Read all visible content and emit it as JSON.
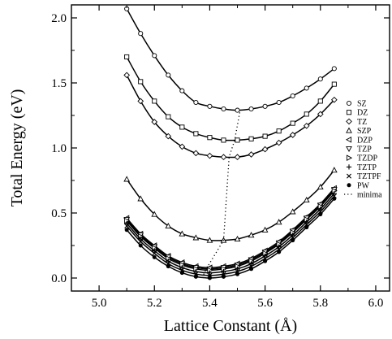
{
  "chart_data": {
    "type": "line",
    "xlabel": "Lattice Constant  (Å)",
    "ylabel": "Total Energy  (eV)",
    "xlim": [
      4.9,
      6.05
    ],
    "ylim": [
      -0.1,
      2.1
    ],
    "xticks": [
      "5.0",
      "5.2",
      "5.4",
      "5.6",
      "5.8",
      "6.0"
    ],
    "yticks": [
      "0.0",
      "0.5",
      "1.0",
      "1.5",
      "2.0"
    ],
    "grid": false,
    "legend_position": "right",
    "x": [
      5.1,
      5.15,
      5.2,
      5.25,
      5.3,
      5.35,
      5.4,
      5.45,
      5.5,
      5.55,
      5.6,
      5.65,
      5.7,
      5.75,
      5.8,
      5.85
    ],
    "series": [
      {
        "name": "SZ",
        "marker": "circle",
        "values": [
          2.07,
          1.88,
          1.71,
          1.56,
          1.44,
          1.35,
          1.32,
          1.3,
          1.29,
          1.3,
          1.32,
          1.35,
          1.4,
          1.46,
          1.53,
          1.61
        ]
      },
      {
        "name": "DZ",
        "marker": "square",
        "values": [
          1.7,
          1.51,
          1.36,
          1.24,
          1.16,
          1.11,
          1.08,
          1.06,
          1.06,
          1.07,
          1.09,
          1.13,
          1.19,
          1.26,
          1.36,
          1.49
        ]
      },
      {
        "name": "TZ",
        "marker": "diamond",
        "values": [
          1.56,
          1.36,
          1.2,
          1.09,
          1.01,
          0.96,
          0.94,
          0.93,
          0.93,
          0.95,
          0.99,
          1.04,
          1.1,
          1.17,
          1.26,
          1.37
        ]
      },
      {
        "name": "SZP",
        "marker": "triangle-up",
        "values": [
          0.76,
          0.61,
          0.49,
          0.4,
          0.34,
          0.31,
          0.29,
          0.29,
          0.3,
          0.33,
          0.37,
          0.43,
          0.51,
          0.6,
          0.7,
          0.83
        ]
      },
      {
        "name": "DZP",
        "marker": "triangle-left",
        "values": [
          0.46,
          0.34,
          0.25,
          0.17,
          0.12,
          0.09,
          0.08,
          0.09,
          0.11,
          0.15,
          0.21,
          0.28,
          0.37,
          0.47,
          0.57,
          0.69
        ]
      },
      {
        "name": "TZP",
        "marker": "triangle-down",
        "values": [
          0.45,
          0.33,
          0.24,
          0.16,
          0.11,
          0.08,
          0.07,
          0.08,
          0.1,
          0.14,
          0.2,
          0.27,
          0.36,
          0.46,
          0.56,
          0.68
        ]
      },
      {
        "name": "TZDP",
        "marker": "triangle-right",
        "values": [
          0.44,
          0.32,
          0.23,
          0.15,
          0.1,
          0.07,
          0.06,
          0.07,
          0.09,
          0.13,
          0.19,
          0.26,
          0.35,
          0.45,
          0.55,
          0.67
        ]
      },
      {
        "name": "TZTP",
        "marker": "plus",
        "values": [
          0.42,
          0.3,
          0.21,
          0.13,
          0.08,
          0.05,
          0.04,
          0.05,
          0.07,
          0.11,
          0.17,
          0.24,
          0.33,
          0.43,
          0.53,
          0.65
        ]
      },
      {
        "name": "TZTPF",
        "marker": "x",
        "values": [
          0.4,
          0.28,
          0.19,
          0.11,
          0.06,
          0.03,
          0.02,
          0.03,
          0.05,
          0.09,
          0.15,
          0.22,
          0.31,
          0.41,
          0.51,
          0.63
        ]
      },
      {
        "name": "PW",
        "marker": "dot",
        "values": [
          0.37,
          0.25,
          0.16,
          0.09,
          0.04,
          0.01,
          0.0,
          0.01,
          0.03,
          0.07,
          0.13,
          0.2,
          0.29,
          0.39,
          0.49,
          0.61
        ]
      }
    ],
    "minima_line": {
      "name": "minima",
      "style": "dotted",
      "points": [
        [
          5.375,
          0.0
        ],
        [
          5.38,
          0.04
        ],
        [
          5.39,
          0.08
        ],
        [
          5.45,
          0.29
        ],
        [
          5.47,
          0.93
        ],
        [
          5.49,
          1.06
        ],
        [
          5.51,
          1.29
        ]
      ]
    }
  }
}
